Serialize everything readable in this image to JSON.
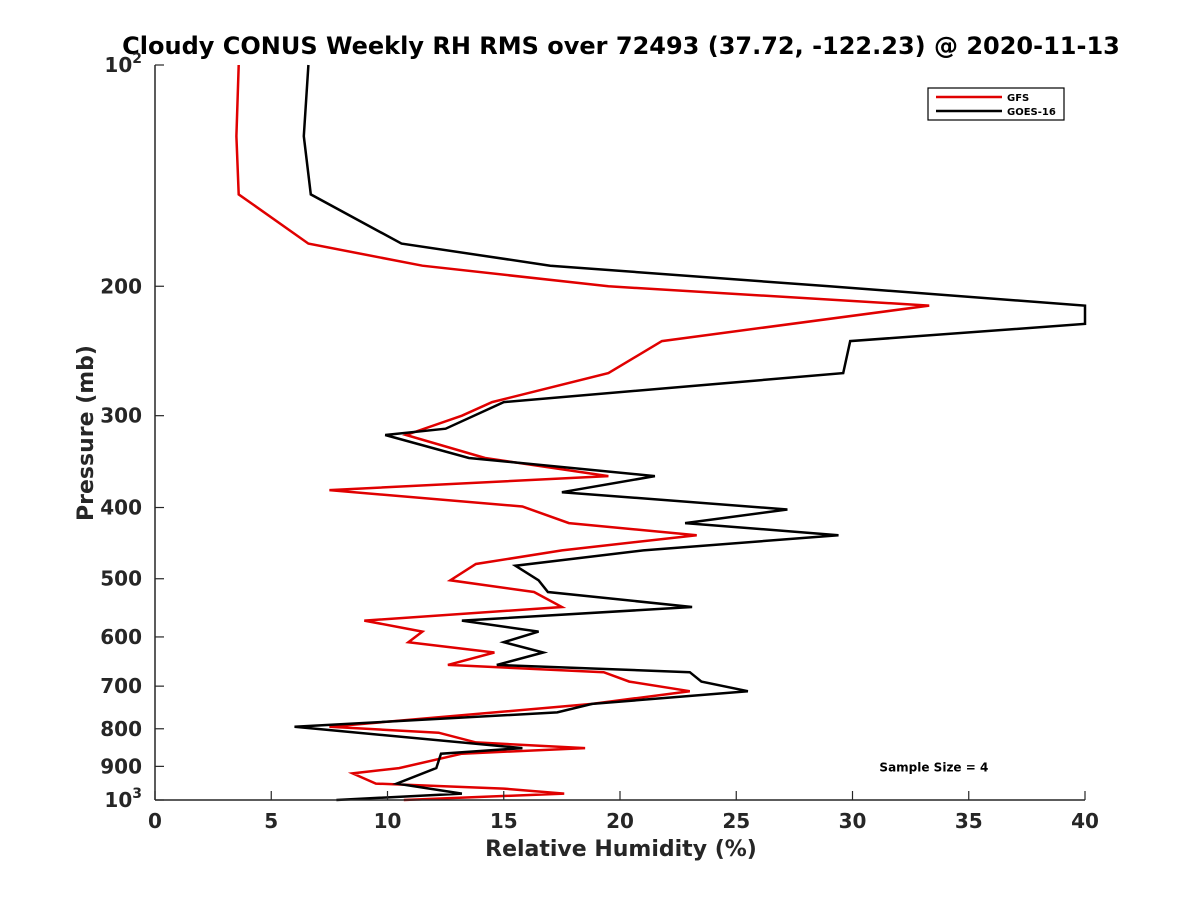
{
  "chart_data": {
    "type": "line",
    "title": "Cloudy CONUS Weekly RH RMS over 72493 (37.72, -122.23) @ 2020-11-13",
    "xlabel": "Relative Humidity (%)",
    "ylabel": "Pressure (mb)",
    "xlim": [
      0,
      40
    ],
    "ylim": [
      100,
      1000
    ],
    "yscale": "log",
    "y_reversed": true,
    "grid": false,
    "legend_position": "top-right",
    "x_ticks": [
      "0",
      "5",
      "10",
      "15",
      "20",
      "25",
      "30",
      "35",
      "40"
    ],
    "y_ticks": [
      {
        "value": 100,
        "label": "10",
        "sup": "2"
      },
      {
        "value": 200,
        "label": "200",
        "sup": ""
      },
      {
        "value": 300,
        "label": "300",
        "sup": ""
      },
      {
        "value": 400,
        "label": "400",
        "sup": ""
      },
      {
        "value": 500,
        "label": "500",
        "sup": ""
      },
      {
        "value": 600,
        "label": "600",
        "sup": ""
      },
      {
        "value": 700,
        "label": "700",
        "sup": ""
      },
      {
        "value": 800,
        "label": "800",
        "sup": ""
      },
      {
        "value": 900,
        "label": "900",
        "sup": ""
      },
      {
        "value": 1000,
        "label": "10",
        "sup": "3"
      }
    ],
    "series": [
      {
        "name": "GFS",
        "color": "#e00000",
        "points": [
          [
            3.6,
            100
          ],
          [
            3.5,
            125
          ],
          [
            3.6,
            150
          ],
          [
            6.6,
            175
          ],
          [
            11.5,
            187.5
          ],
          [
            19.5,
            200
          ],
          [
            33.3,
            212.5
          ],
          [
            21.8,
            237.5
          ],
          [
            19.5,
            262.5
          ],
          [
            14.5,
            287.5
          ],
          [
            13.2,
            300
          ],
          [
            10.8,
            318.75
          ],
          [
            14.2,
            342.5
          ],
          [
            19.5,
            362.5
          ],
          [
            7.5,
            378.75
          ],
          [
            15.8,
            398.75
          ],
          [
            17.8,
            420
          ],
          [
            23.3,
            436.25
          ],
          [
            17.5,
            457.5
          ],
          [
            13.8,
            477.5
          ],
          [
            12.7,
            502.5
          ],
          [
            16.3,
            521.25
          ],
          [
            17.5,
            546.25
          ],
          [
            9.0,
            570
          ],
          [
            11.5,
            590
          ],
          [
            10.9,
            610
          ],
          [
            14.6,
            630
          ],
          [
            12.6,
            655
          ],
          [
            19.3,
            670
          ],
          [
            20.4,
            690
          ],
          [
            23.0,
            711.25
          ],
          [
            18.8,
            740
          ],
          [
            7.5,
            795
          ],
          [
            12.2,
            810
          ],
          [
            13.8,
            835
          ],
          [
            18.5,
            850
          ],
          [
            13.2,
            865
          ],
          [
            10.5,
            905
          ],
          [
            8.5,
            920
          ],
          [
            9.5,
            950
          ],
          [
            15.0,
            965
          ],
          [
            17.6,
            980
          ],
          [
            10.7,
            1000
          ]
        ]
      },
      {
        "name": "GOES-16",
        "color": "#000000",
        "points": [
          [
            6.6,
            100
          ],
          [
            6.4,
            125
          ],
          [
            6.7,
            150
          ],
          [
            10.6,
            175
          ],
          [
            17.0,
            187.5
          ],
          [
            29.0,
            200
          ],
          [
            40.0,
            212.5
          ],
          [
            40.0,
            225
          ],
          [
            29.9,
            237.5
          ],
          [
            29.6,
            262.5
          ],
          [
            15.0,
            287.5
          ],
          [
            12.5,
            312.5
          ],
          [
            9.9,
            318.75
          ],
          [
            13.5,
            342.5
          ],
          [
            21.5,
            362.5
          ],
          [
            17.5,
            381.25
          ],
          [
            27.2,
            402.5
          ],
          [
            22.8,
            420
          ],
          [
            29.4,
            436.25
          ],
          [
            21.0,
            457.5
          ],
          [
            15.5,
            480
          ],
          [
            16.5,
            502.5
          ],
          [
            16.9,
            521.25
          ],
          [
            23.1,
            546.25
          ],
          [
            13.2,
            570
          ],
          [
            16.5,
            590
          ],
          [
            15.0,
            610
          ],
          [
            16.7,
            630
          ],
          [
            14.7,
            655
          ],
          [
            23.0,
            670
          ],
          [
            23.5,
            690
          ],
          [
            25.5,
            711.25
          ],
          [
            18.8,
            740
          ],
          [
            17.3,
            760
          ],
          [
            6.0,
            795
          ],
          [
            15.8,
            850
          ],
          [
            12.3,
            865
          ],
          [
            12.1,
            905
          ],
          [
            10.4,
            950
          ],
          [
            13.2,
            980
          ],
          [
            7.8,
            1000
          ]
        ]
      }
    ],
    "annotations": [
      {
        "text": "Sample Size = 4",
        "x": 33.5,
        "y": 900
      }
    ]
  }
}
